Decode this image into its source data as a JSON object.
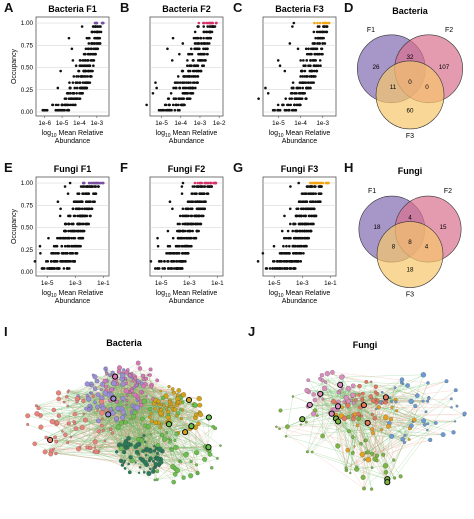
{
  "panel_letters": {
    "A": "A",
    "B": "B",
    "C": "C",
    "D": "D",
    "E": "E",
    "F": "F",
    "G": "G",
    "H": "H",
    "I": "I",
    "J": "J"
  },
  "colors": {
    "F1": "#7b4fa0",
    "F2": "#d6336c",
    "F3": "#f2a413",
    "venn_F1": "#8a73b5",
    "venn_F2": "#d8708f",
    "venn_F3": "#f6c66b",
    "points": "#111111"
  },
  "occupancy_ticks": [
    "0.00",
    "0.25",
    "0.50",
    "0.75",
    "1.00"
  ],
  "y_label": "Occupancy",
  "x_label_prefix": "log",
  "x_label_sub": "10",
  "x_label_rest": " Mean Relative",
  "x_label_line2": "Abundance",
  "chart_data": [
    {
      "id": "A",
      "type": "scatter",
      "title": "Bacteria F1",
      "xticks": [
        "1e-6",
        "1e-5",
        "1e-4",
        "1e-3"
      ],
      "xlim": [
        -6.5,
        -2.3
      ],
      "ylim": [
        0,
        1
      ],
      "highlight": "F1",
      "occupancy": [
        0.02,
        0.08,
        0.15,
        0.21,
        0.27,
        0.33,
        0.4,
        0.46,
        0.52,
        0.58,
        0.65,
        0.71,
        0.77,
        0.83,
        0.9,
        0.96,
        1.0
      ],
      "min_log_abundance": [
        -6.2,
        -5.6,
        -5.2,
        -5.0,
        -4.8,
        -4.6,
        -4.4,
        -4.3,
        -4.2,
        -4.0,
        -3.9,
        -3.8,
        -3.7,
        -3.6,
        -3.5,
        -3.4,
        -3.3
      ],
      "max_log_abundance": [
        -4.6,
        -4.2,
        -3.9,
        -3.7,
        -3.5,
        -3.4,
        -3.3,
        -3.2,
        -3.1,
        -3.0,
        -2.9,
        -2.9,
        -2.8,
        -2.8,
        -2.7,
        -2.7,
        -2.6
      ]
    },
    {
      "id": "B",
      "type": "scatter",
      "title": "Bacteria F2",
      "xticks": [
        "1e-5",
        "1e-4",
        "1e-3",
        "1e-2"
      ],
      "xlim": [
        -5.6,
        -1.8
      ],
      "ylim": [
        0,
        1
      ],
      "highlight": "F2",
      "occupancy": [
        0.02,
        0.08,
        0.15,
        0.21,
        0.27,
        0.33,
        0.4,
        0.46,
        0.52,
        0.58,
        0.65,
        0.71,
        0.77,
        0.83,
        0.9,
        0.96,
        1.0
      ],
      "min_log_abundance": [
        -5.3,
        -5.0,
        -4.8,
        -4.6,
        -4.4,
        -4.3,
        -4.2,
        -4.0,
        -3.9,
        -3.8,
        -3.7,
        -3.6,
        -3.5,
        -3.4,
        -3.3,
        -3.2,
        -3.1
      ],
      "max_log_abundance": [
        -4.0,
        -3.7,
        -3.5,
        -3.3,
        -3.2,
        -3.1,
        -3.0,
        -2.9,
        -2.8,
        -2.7,
        -2.6,
        -2.6,
        -2.5,
        -2.4,
        -2.3,
        -2.2,
        -2.1
      ]
    },
    {
      "id": "C",
      "type": "scatter",
      "title": "Bacteria F3",
      "xticks": [
        "1e-5",
        "1e-4",
        "1e-3"
      ],
      "xlim": [
        -5.7,
        -2.4
      ],
      "ylim": [
        0,
        1
      ],
      "highlight": "F3",
      "occupancy": [
        0.02,
        0.08,
        0.15,
        0.21,
        0.27,
        0.33,
        0.4,
        0.46,
        0.52,
        0.58,
        0.65,
        0.71,
        0.77,
        0.83,
        0.9,
        0.96,
        1.0
      ],
      "min_log_abundance": [
        -5.4,
        -5.1,
        -4.9,
        -4.7,
        -4.6,
        -4.4,
        -4.3,
        -4.2,
        -4.1,
        -4.0,
        -3.9,
        -3.8,
        -3.7,
        -3.6,
        -3.5,
        -3.5,
        -3.4
      ],
      "max_log_abundance": [
        -4.2,
        -3.9,
        -3.7,
        -3.6,
        -3.5,
        -3.4,
        -3.3,
        -3.2,
        -3.1,
        -3.1,
        -3.0,
        -3.0,
        -2.9,
        -2.9,
        -2.8,
        -2.8,
        -2.7
      ]
    },
    {
      "id": "E",
      "type": "scatter",
      "title": "Fungi F1",
      "xticks": [
        "1e-5",
        "1e-3",
        "1e-1"
      ],
      "xlim": [
        -5.8,
        -0.6
      ],
      "ylim": [
        0,
        1
      ],
      "highlight": "F1",
      "occupancy": [
        0.04,
        0.12,
        0.21,
        0.29,
        0.38,
        0.46,
        0.54,
        0.63,
        0.71,
        0.79,
        0.88,
        0.96,
        1.0
      ],
      "min_log_abundance": [
        -5.5,
        -5.2,
        -4.9,
        -4.6,
        -4.3,
        -4.0,
        -3.8,
        -3.6,
        -3.4,
        -3.2,
        -3.0,
        -2.8,
        -2.6
      ],
      "max_log_abundance": [
        -3.4,
        -3.0,
        -2.8,
        -2.6,
        -2.4,
        -2.2,
        -2.0,
        -1.9,
        -1.8,
        -1.6,
        -1.5,
        -1.3,
        -1.0
      ]
    },
    {
      "id": "F",
      "type": "scatter",
      "title": "Fungi F2",
      "xticks": [
        "1e-5",
        "1e-3",
        "1e-1"
      ],
      "xlim": [
        -5.8,
        -0.6
      ],
      "ylim": [
        0,
        1
      ],
      "highlight": "F2",
      "occupancy": [
        0.04,
        0.12,
        0.21,
        0.29,
        0.38,
        0.46,
        0.54,
        0.63,
        0.71,
        0.79,
        0.88,
        0.96,
        1.0
      ],
      "min_log_abundance": [
        -5.5,
        -5.2,
        -4.9,
        -4.6,
        -4.3,
        -4.1,
        -3.9,
        -3.7,
        -3.5,
        -3.3,
        -3.1,
        -2.9,
        -2.7
      ],
      "max_log_abundance": [
        -3.5,
        -3.2,
        -2.9,
        -2.7,
        -2.5,
        -2.3,
        -2.1,
        -2.0,
        -1.9,
        -1.8,
        -1.6,
        -1.4,
        -1.1
      ]
    },
    {
      "id": "G",
      "type": "scatter",
      "title": "Fungi F3",
      "xticks": [
        "1e-5",
        "1e-3",
        "1e-1"
      ],
      "xlim": [
        -5.8,
        -0.6
      ],
      "ylim": [
        0,
        1
      ],
      "highlight": "F3",
      "occupancy": [
        0.04,
        0.12,
        0.21,
        0.29,
        0.38,
        0.46,
        0.54,
        0.63,
        0.71,
        0.79,
        0.88,
        0.96,
        1.0
      ],
      "min_log_abundance": [
        -5.6,
        -5.3,
        -5.0,
        -4.7,
        -4.4,
        -4.1,
        -3.9,
        -3.7,
        -3.5,
        -3.3,
        -3.1,
        -2.9,
        -2.7
      ],
      "max_log_abundance": [
        -3.5,
        -3.1,
        -2.9,
        -2.7,
        -2.5,
        -2.3,
        -2.1,
        -2.0,
        -1.9,
        -1.7,
        -1.6,
        -1.4,
        -1.1
      ]
    },
    {
      "id": "D",
      "type": "venn",
      "title": "Bacteria",
      "sets": [
        "F1",
        "F2",
        "F3"
      ],
      "regions": {
        "F1": 26,
        "F2": 107,
        "F3": 60,
        "F1_F2": 32,
        "F1_F3": 11,
        "F2_F3": 0,
        "F1_F2_F3": 0
      }
    },
    {
      "id": "H",
      "type": "venn",
      "title": "Fungi",
      "sets": [
        "F1",
        "F2",
        "F3"
      ],
      "regions": {
        "F1": 18,
        "F2": 15,
        "F3": 18,
        "F1_F2": 4,
        "F1_F3": 8,
        "F2_F3": 4,
        "F1_F2_F3": 8
      }
    },
    {
      "id": "I",
      "type": "network",
      "title": "Bacteria",
      "module_colors": [
        "#e8837a",
        "#9b8fd6",
        "#d57ab5",
        "#6cbf4e",
        "#d1a21a",
        "#2c7a5a"
      ]
    },
    {
      "id": "J",
      "type": "network",
      "title": "Fungi",
      "module_colors": [
        "#e6a122",
        "#7cb544",
        "#d88fbd",
        "#6b9bd2",
        "#e07a5f",
        "#2c7a5a"
      ]
    }
  ]
}
